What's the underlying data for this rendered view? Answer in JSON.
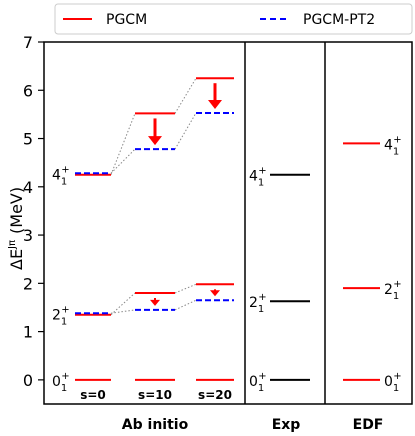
{
  "chart_data": {
    "type": "level-scheme",
    "ylabel": "ΔE",
    "ylabel_superscript": "Jπ",
    "ylabel_unit": "(MeV)",
    "ylim": [
      -0.5,
      7
    ],
    "yticks": [
      "0",
      "1",
      "2",
      "3",
      "4",
      "5",
      "6",
      "7"
    ],
    "legend": {
      "placement": "top",
      "entries": [
        {
          "name": "PGCM",
          "color": "#ff0000",
          "style": "solid"
        },
        {
          "name": "PGCM-PT2",
          "color": "#0000ff",
          "style": "dashed"
        }
      ]
    },
    "panels": [
      {
        "label": "Ab initio"
      },
      {
        "label": "Exp"
      },
      {
        "label": "EDF"
      }
    ],
    "ab_initio": {
      "columns": [
        "s=0",
        "s=10",
        "s=20"
      ],
      "series": [
        {
          "name": "PGCM",
          "levels": {
            "0+": [
              0,
              0,
              0
            ],
            "2+": [
              1.35,
              1.8,
              1.98
            ],
            "4+": [
              4.25,
              5.52,
              6.25
            ]
          }
        },
        {
          "name": "PGCM-PT2",
          "levels": {
            "0+": [
              0,
              0,
              0
            ],
            "2+": [
              1.38,
              1.45,
              1.65
            ],
            "4+": [
              4.28,
              4.78,
              5.53
            ]
          }
        }
      ],
      "state_labels": {
        "0+": "0",
        "2+": "2",
        "4+": "4"
      }
    },
    "exp": {
      "color": "#000000",
      "levels": [
        {
          "state": "0",
          "energy": 0
        },
        {
          "state": "2",
          "energy": 1.63
        },
        {
          "state": "4",
          "energy": 4.25
        }
      ]
    },
    "edf": {
      "color": "#ff0000",
      "levels": [
        {
          "state": "0",
          "energy": 0
        },
        {
          "state": "2",
          "energy": 1.9
        },
        {
          "state": "4",
          "energy": 4.9
        }
      ]
    },
    "state_sub": "1",
    "state_sup": "+"
  }
}
